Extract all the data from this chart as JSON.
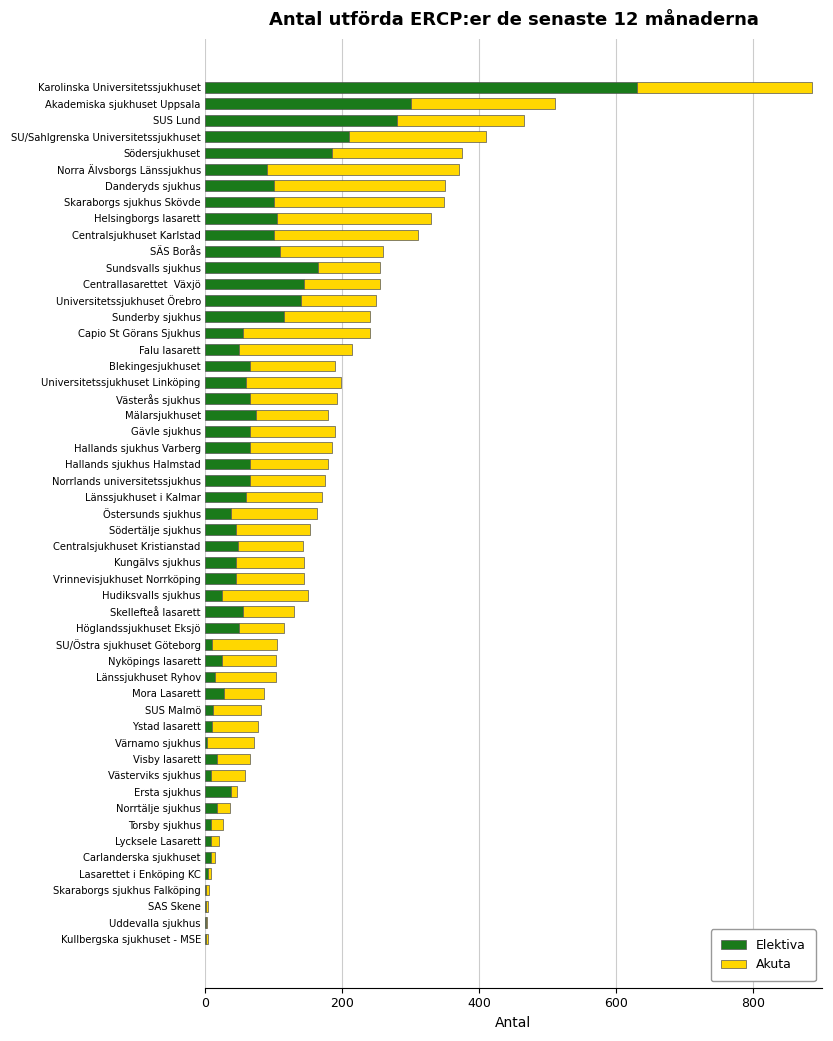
{
  "title": "Antal utförda ERCP:er de senaste 12 månaderna",
  "xlabel": "Antal",
  "color_elektiva": "#1a7a1a",
  "color_akuta": "#ffd700",
  "bar_edge_color": "#555555",
  "background_color": "#ffffff",
  "grid_color": "#cccccc",
  "xlim": [
    0,
    900
  ],
  "xticks": [
    0,
    200,
    400,
    600,
    800
  ],
  "hospitals": [
    "Karolinska Universitetssjukhuset",
    "Akademiska sjukhuset Uppsala",
    "SUS Lund",
    "SU/Sahlgrenska Universitetssjukhuset",
    "Södersjukhuset",
    "Norra Älvsborgs Länssjukhus",
    "Danderyds sjukhus",
    "Skaraborgs sjukhus Skövde",
    "Helsingborgs lasarett",
    "Centralsjukhuset Karlstad",
    "SÄS Borås",
    "Sundsvalls sjukhus",
    "Centrallasarettet  Växjö",
    "Universitetssjukhuset Örebro",
    "Sunderby sjukhus",
    "Capio St Görans Sjukhus",
    "Falu lasarett",
    "Blekingesjukhuset",
    "Universitetssjukhuset Linköping",
    "Västerås sjukhus",
    "Mälarsjukhuset",
    "Gävle sjukhus",
    "Hallands sjukhus Varberg",
    "Hallands sjukhus Halmstad",
    "Norrlands universitetssjukhus",
    "Länssjukhuset i Kalmar",
    "Östersunds sjukhus",
    "Södertälje sjukhus",
    "Centralsjukhuset Kristianstad",
    "Kungälvs sjukhus",
    "Vrinnevisjukhuset Norrköping",
    "Hudiksvalls sjukhus",
    "Skellefteå lasarett",
    "Höglandssjukhuset Eksjö",
    "SU/Östra sjukhuset Göteborg",
    "Nyköpings lasarett",
    "Länssjukhuset Ryhov",
    "Mora Lasarett",
    "SUS Malmö",
    "Ystad lasarett",
    "Värnamo sjukhus",
    "Visby lasarett",
    "Västerviks sjukhus",
    "Ersta sjukhus",
    "Norrtälje sjukhus",
    "Torsby sjukhus",
    "Lycksele Lasarett",
    "Carlanderska sjukhuset",
    "Lasarettet i Enköping KC",
    "Skaraborgs sjukhus Falköping",
    "SAS Skene",
    "Uddevalla sjukhus",
    "Kullbergska sjukhuset - MSE"
  ],
  "elektiva": [
    630,
    300,
    280,
    210,
    185,
    90,
    100,
    100,
    105,
    100,
    110,
    165,
    145,
    140,
    115,
    55,
    50,
    65,
    60,
    65,
    75,
    65,
    65,
    65,
    65,
    60,
    38,
    45,
    48,
    45,
    45,
    25,
    55,
    50,
    10,
    25,
    15,
    28,
    12,
    10,
    3,
    18,
    8,
    38,
    18,
    8,
    8,
    9,
    4,
    2,
    2,
    1,
    2
  ],
  "akuta": [
    255,
    210,
    185,
    200,
    190,
    280,
    250,
    248,
    225,
    210,
    150,
    90,
    110,
    110,
    125,
    185,
    165,
    125,
    138,
    128,
    105,
    125,
    120,
    115,
    110,
    110,
    125,
    108,
    95,
    100,
    100,
    125,
    75,
    65,
    95,
    78,
    88,
    58,
    70,
    68,
    68,
    48,
    50,
    8,
    18,
    18,
    12,
    5,
    4,
    4,
    2,
    2,
    2
  ]
}
